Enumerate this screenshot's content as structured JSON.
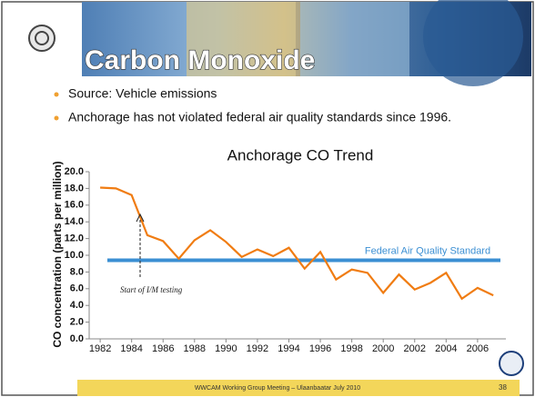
{
  "slide": {
    "title": "Carbon Monoxide",
    "bullets": [
      "Source: Vehicle emissions",
      "Anchorage has not violated federal air quality standards since 1996."
    ],
    "footer": "WWCAM Working Group Meeting – Ulaanbaatar July 2010",
    "page_number": "38"
  },
  "chart_data": {
    "type": "line",
    "title": "Anchorage CO Trend",
    "y_label": "CO concentration (parts per million)",
    "x": [
      1982,
      1983,
      1984,
      1985,
      1986,
      1987,
      1988,
      1989,
      1990,
      1991,
      1992,
      1993,
      1994,
      1995,
      1996,
      1997,
      1998,
      1999,
      2000,
      2001,
      2002,
      2003,
      2004,
      2005,
      2006,
      2007
    ],
    "series": [
      {
        "name": "Anchorage CO",
        "color": "#f07c12",
        "values": [
          18.1,
          18.0,
          17.2,
          12.4,
          11.7,
          9.6,
          11.8,
          13.0,
          11.6,
          9.8,
          10.7,
          9.9,
          10.9,
          8.4,
          10.4,
          7.1,
          8.3,
          7.9,
          5.5,
          7.7,
          5.9,
          6.7,
          7.9,
          4.8,
          6.1,
          5.2
        ]
      }
    ],
    "reference_line": {
      "value": 9.4,
      "label": "Federal Air Quality Standard",
      "color": "#3b8fd3"
    },
    "annotation": "Start of I/M testing",
    "xlim": [
      1981.3,
      2007.8
    ],
    "xticks": [
      1982,
      1984,
      1986,
      1988,
      1990,
      1992,
      1994,
      1996,
      1998,
      2000,
      2002,
      2004,
      2006
    ],
    "ylim": [
      0,
      20
    ],
    "yticks": [
      {
        "value": 0,
        "label": "0.0"
      },
      {
        "value": 2,
        "label": "2.0"
      },
      {
        "value": 4,
        "label": "4.0"
      },
      {
        "value": 6,
        "label": "6.0"
      },
      {
        "value": 8,
        "label": "8.0"
      },
      {
        "value": 10,
        "label": "10.0"
      },
      {
        "value": 12,
        "label": "12.0"
      },
      {
        "value": 14,
        "label": "14.0"
      },
      {
        "value": 16,
        "label": "16.0"
      },
      {
        "value": 18,
        "label": "18.0"
      },
      {
        "value": 20,
        "label": "20.0"
      }
    ]
  }
}
